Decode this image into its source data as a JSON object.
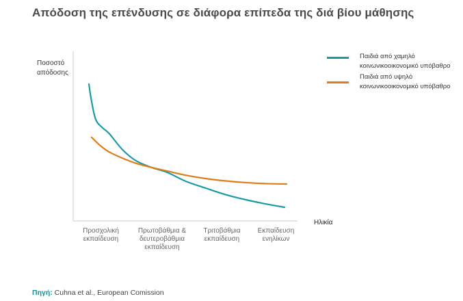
{
  "title": "Απόδοση της επένδυσης σε διάφορα επίπεδα της διά βίου μάθησης",
  "source": {
    "label": "Πηγή:",
    "text": "Cuhna et al., European Comission"
  },
  "chart_data": {
    "type": "line",
    "title": "Απόδοση της επένδυσης σε διάφορα επίπεδα της διά βίου μάθησης",
    "xlabel": "Ηλικία",
    "ylabel": "Ποσοστό απόδοσης",
    "tick_labels": [
      "Προσχολική εκπαίδευση",
      "Πρωτοβάθμια & δευτεροβάθμια εκπαίδευση",
      "Τριτοβάθμια εκπαίδευση",
      "Εκπαίδευση ενηλίκων"
    ],
    "xlim": [
      0,
      100
    ],
    "ylim": [
      0,
      100
    ],
    "grid": false,
    "legend_position": "top-right",
    "series": [
      {
        "name": "Παιδιά από χαμηλό κοινωνικοοικονομικό υπόβαθρο",
        "color": "#1a9aa6",
        "x": [
          7,
          8,
          10,
          13,
          16,
          22,
          28,
          35,
          42,
          50,
          59,
          68,
          77,
          86,
          94.5
        ],
        "y": [
          81,
          72,
          60,
          55,
          51.6,
          42,
          35.5,
          31.5,
          28.6,
          23.5,
          19.4,
          15.5,
          12.5,
          10,
          8
        ]
      },
      {
        "name": "Παιδιά από υψηλό κοινωνικοοικονομικό υπόβαθρο",
        "color": "#e07b1a",
        "x": [
          8,
          12,
          16,
          22,
          28,
          35,
          42,
          50,
          59,
          68,
          77,
          86,
          95.4
        ],
        "y": [
          49.6,
          44.5,
          40.7,
          37,
          34,
          31.5,
          29.4,
          27,
          25,
          23.6,
          22.6,
          22,
          21.8
        ]
      }
    ]
  }
}
